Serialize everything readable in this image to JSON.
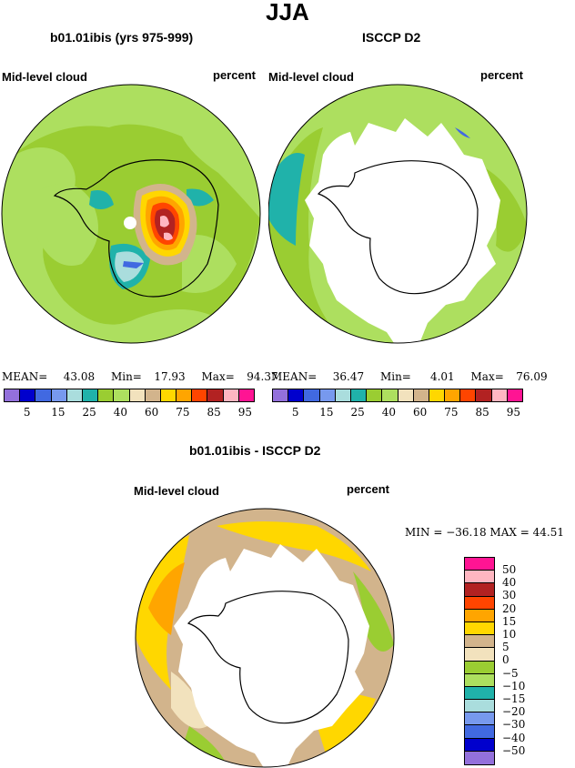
{
  "title": "JJA",
  "panels": [
    {
      "header": "b01.01ibis (yrs 975-999)",
      "field_label": "Mid-level cloud",
      "units": "percent",
      "mean_label": "MEAN=",
      "mean": "43.08",
      "min_label": "Min=",
      "min": "17.93",
      "max_label": "Max=",
      "max": "94.37"
    },
    {
      "header": "ISCCP D2",
      "field_label": "Mid-level cloud",
      "units": "percent",
      "mean_label": "MEAN=",
      "mean": "36.47",
      "min_label": "Min=",
      "min": "4.01",
      "max_label": "Max=",
      "max": "76.09"
    }
  ],
  "diff_panel": {
    "header": "b01.01ibis - ISCCP D2",
    "field_label": "Mid-level cloud",
    "units": "percent",
    "minmax_text": "MIN = −36.18  MAX =  44.51"
  },
  "colorbar_main": {
    "colors": [
      "#9370db",
      "#0000cd",
      "#4169e1",
      "#7799ee",
      "#aadddd",
      "#20b2aa",
      "#9acd32",
      "#addf5f",
      "#f2e2bd",
      "#d2b48c",
      "#ffd700",
      "#ffa500",
      "#ff4500",
      "#b22222",
      "#ffb6c1",
      "#ff1493"
    ],
    "labels": [
      "5",
      "15",
      "25",
      "40",
      "60",
      "75",
      "85",
      "95"
    ]
  },
  "colorbar_diff": {
    "colors": [
      "#ff1493",
      "#ffb6c1",
      "#b22222",
      "#ff4500",
      "#ffa500",
      "#ffd700",
      "#d2b48c",
      "#f2e2bd",
      "#9acd32",
      "#addf5f",
      "#20b2aa",
      "#aadddd",
      "#7799ee",
      "#4169e1",
      "#0000cd",
      "#9370db"
    ],
    "labels": [
      "50",
      "40",
      "30",
      "20",
      "15",
      "10",
      "5",
      "0",
      "−5",
      "−10",
      "−15",
      "−20",
      "−30",
      "−40",
      "−50"
    ]
  },
  "chart_data": [
    {
      "type": "heatmap",
      "title": "b01.01ibis (yrs 975-999)",
      "variable": "Mid-level cloud",
      "units": "percent",
      "season": "JJA",
      "stats": {
        "mean": 43.08,
        "min": 17.93,
        "max": 94.37
      },
      "levels": [
        5,
        15,
        25,
        40,
        60,
        75,
        85,
        95
      ]
    },
    {
      "type": "heatmap",
      "title": "ISCCP D2",
      "variable": "Mid-level cloud",
      "units": "percent",
      "season": "JJA",
      "stats": {
        "mean": 36.47,
        "min": 4.01,
        "max": 76.09
      },
      "levels": [
        5,
        15,
        25,
        40,
        60,
        75,
        85,
        95
      ]
    },
    {
      "type": "heatmap",
      "title": "b01.01ibis - ISCCP D2",
      "variable": "Mid-level cloud",
      "units": "percent",
      "season": "JJA",
      "stats": {
        "min": -36.18,
        "max": 44.51
      },
      "levels": [
        -50,
        -40,
        -30,
        -20,
        -15,
        -10,
        -5,
        0,
        5,
        10,
        15,
        20,
        30,
        40,
        50
      ]
    }
  ]
}
